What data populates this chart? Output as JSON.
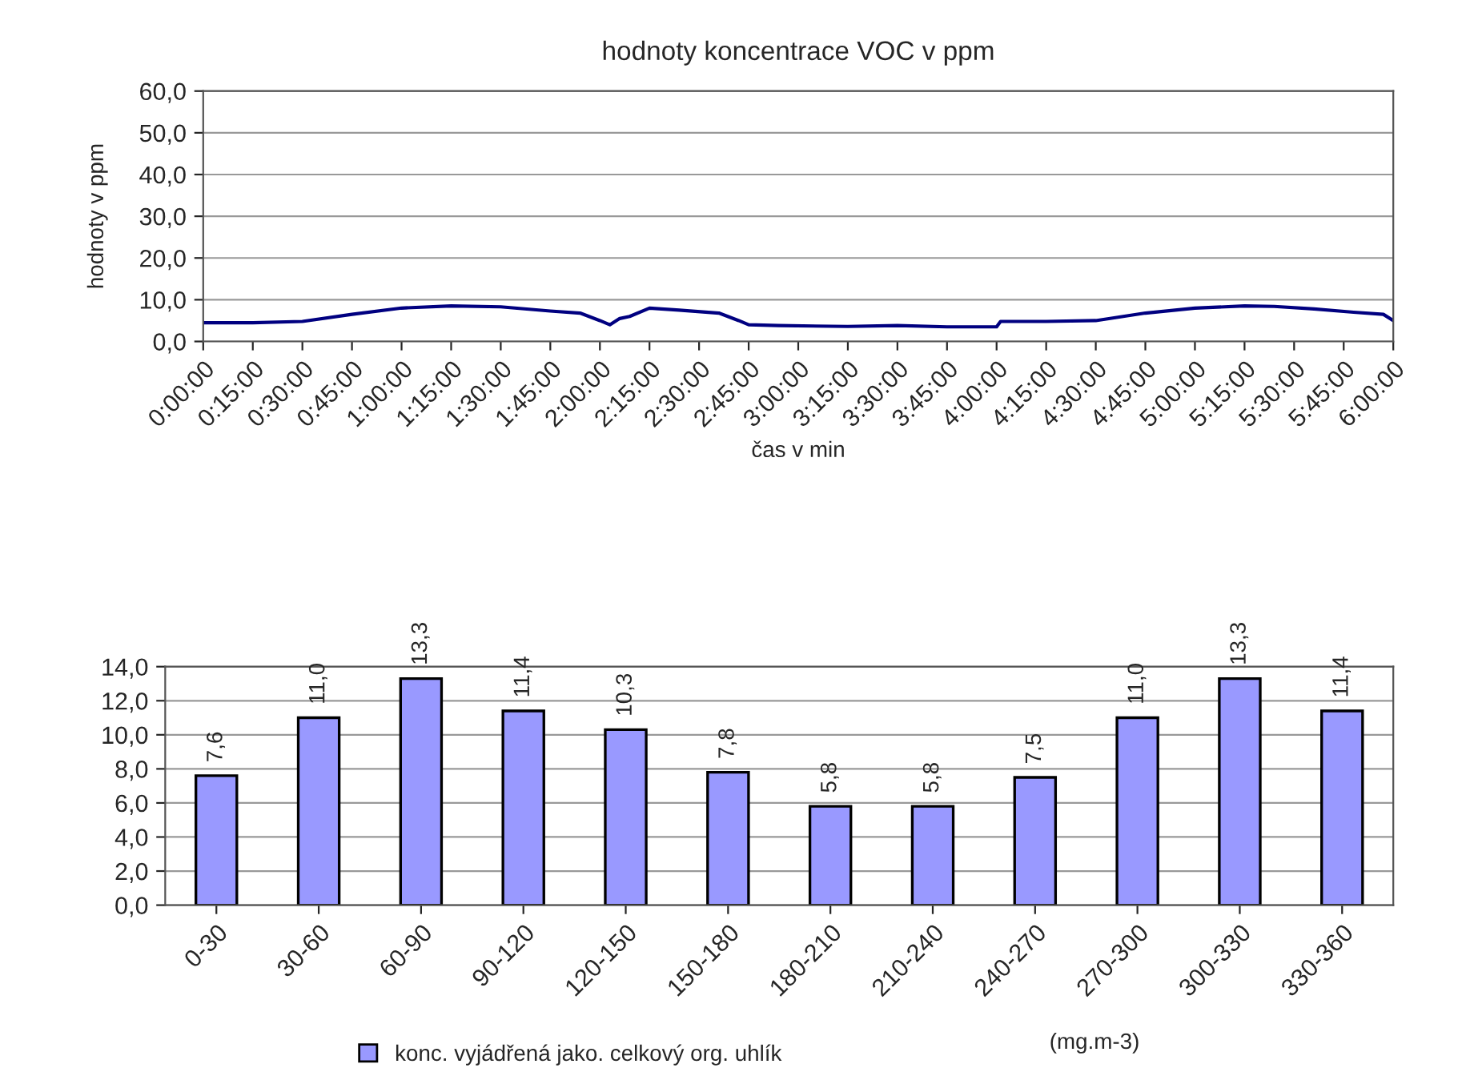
{
  "chart_data": [
    {
      "type": "line",
      "title": "hodnoty koncentrace VOC v ppm",
      "xlabel": "čas v min",
      "ylabel": "hodnoty v ppm",
      "x": [
        0,
        0.25,
        0.5,
        0.75,
        1.0,
        1.25,
        1.5,
        1.75,
        1.9,
        2.0,
        2.05,
        2.1,
        2.15,
        2.25,
        2.4,
        2.6,
        2.7,
        2.75,
        2.9,
        3.25,
        3.5,
        3.75,
        4.0,
        4.02,
        4.25,
        4.5,
        4.75,
        5.0,
        5.25,
        5.4,
        5.6,
        5.8,
        5.95,
        6.0
      ],
      "series": [
        {
          "color": "#000080",
          "values": [
            4.5,
            4.5,
            4.8,
            6.5,
            8.0,
            8.5,
            8.3,
            7.3,
            6.8,
            5.0,
            4.0,
            5.5,
            6.0,
            8.0,
            7.5,
            6.8,
            5.0,
            4.0,
            3.8,
            3.6,
            3.8,
            3.5,
            3.5,
            4.8,
            4.8,
            5.0,
            6.8,
            8.0,
            8.5,
            8.4,
            7.8,
            7.0,
            6.5,
            5.0
          ]
        }
      ],
      "xlim": [
        0,
        6
      ],
      "xticks": [
        {
          "value": 0,
          "label": "0:00:00"
        },
        {
          "value": 0.25,
          "label": "0:15:00"
        },
        {
          "value": 0.5,
          "label": "0:30:00"
        },
        {
          "value": 0.75,
          "label": "0:45:00"
        },
        {
          "value": 1.0,
          "label": "1:00:00"
        },
        {
          "value": 1.25,
          "label": "1:15:00"
        },
        {
          "value": 1.5,
          "label": "1:30:00"
        },
        {
          "value": 1.75,
          "label": "1:45:00"
        },
        {
          "value": 2.0,
          "label": "2:00:00"
        },
        {
          "value": 2.25,
          "label": "2:15:00"
        },
        {
          "value": 2.5,
          "label": "2:30:00"
        },
        {
          "value": 2.75,
          "label": "2:45:00"
        },
        {
          "value": 3.0,
          "label": "3:00:00"
        },
        {
          "value": 3.25,
          "label": "3:15:00"
        },
        {
          "value": 3.5,
          "label": "3:30:00"
        },
        {
          "value": 3.75,
          "label": "3:45:00"
        },
        {
          "value": 4.0,
          "label": "4:00:00"
        },
        {
          "value": 4.25,
          "label": "4:15:00"
        },
        {
          "value": 4.5,
          "label": "4:30:00"
        },
        {
          "value": 4.75,
          "label": "4:45:00"
        },
        {
          "value": 5.0,
          "label": "5:00:00"
        },
        {
          "value": 5.25,
          "label": "5:15:00"
        },
        {
          "value": 5.5,
          "label": "5:30:00"
        },
        {
          "value": 5.75,
          "label": "5:45:00"
        },
        {
          "value": 6.0,
          "label": "6:00:00"
        }
      ],
      "ylim": [
        0,
        60
      ],
      "yticks": [
        {
          "value": 0,
          "label": "0,0"
        },
        {
          "value": 10,
          "label": "10,0"
        },
        {
          "value": 20,
          "label": "20,0"
        },
        {
          "value": 30,
          "label": "30,0"
        },
        {
          "value": 40,
          "label": "40,0"
        },
        {
          "value": 50,
          "label": "50,0"
        },
        {
          "value": 60,
          "label": "60,0"
        }
      ],
      "grid": "y",
      "legend": false,
      "marker": "none",
      "line_style": "solid"
    },
    {
      "type": "bar",
      "categories": [
        "0-30",
        "30-60",
        "60-90",
        "90-120",
        "120-150",
        "150-180",
        "180-210",
        "210-240",
        "240-270",
        "270-300",
        "300-330",
        "330-360"
      ],
      "series": [
        {
          "name": "konc. vyjádřená jako. celkový org. uhlík",
          "color": "#9999ff",
          "values": [
            7.6,
            11.0,
            13.3,
            11.4,
            10.3,
            7.8,
            5.8,
            5.8,
            7.5,
            11.0,
            13.3,
            11.4
          ],
          "value_labels": [
            "7,6",
            "11,0",
            "13,3",
            "11,4",
            "10,3",
            "7,8",
            "5,8",
            "5,8",
            "7,5",
            "11,0",
            "13,3",
            "11,4"
          ]
        }
      ],
      "ylim": [
        0,
        14
      ],
      "yticks": [
        {
          "value": 0,
          "label": "0,0"
        },
        {
          "value": 2,
          "label": "2,0"
        },
        {
          "value": 4,
          "label": "4,0"
        },
        {
          "value": 6,
          "label": "6,0"
        },
        {
          "value": 8,
          "label": "8,0"
        },
        {
          "value": 10,
          "label": "10,0"
        },
        {
          "value": 12,
          "label": "12,0"
        },
        {
          "value": 14,
          "label": "14,0"
        }
      ],
      "annotations": [
        "(mg.m-3)"
      ],
      "grid": "y",
      "legend": "bottom"
    }
  ]
}
